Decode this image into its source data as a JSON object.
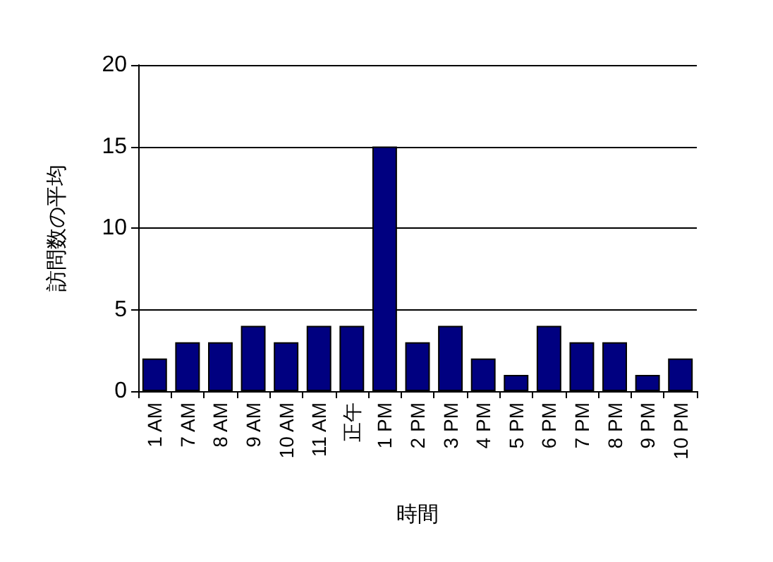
{
  "chart_data": {
    "type": "bar",
    "xlabel": "時間",
    "ylabel": "訪問数の平均",
    "categories": [
      "1 AM",
      "7 AM",
      "8 AM",
      "9 AM",
      "10 AM",
      "11 AM",
      "正午",
      "1 PM",
      "2 PM",
      "3 PM",
      "4 PM",
      "5 PM",
      "6 PM",
      "7 PM",
      "8 PM",
      "9 PM",
      "10 PM"
    ],
    "values": [
      2,
      3,
      3,
      4,
      3,
      4,
      4,
      15,
      3,
      4,
      2,
      1,
      4,
      3,
      3,
      1,
      2
    ],
    "color": "#000080",
    "ylim": [
      0,
      20
    ],
    "yticks": [
      0,
      5,
      10,
      15,
      20
    ],
    "grid": "y"
  }
}
